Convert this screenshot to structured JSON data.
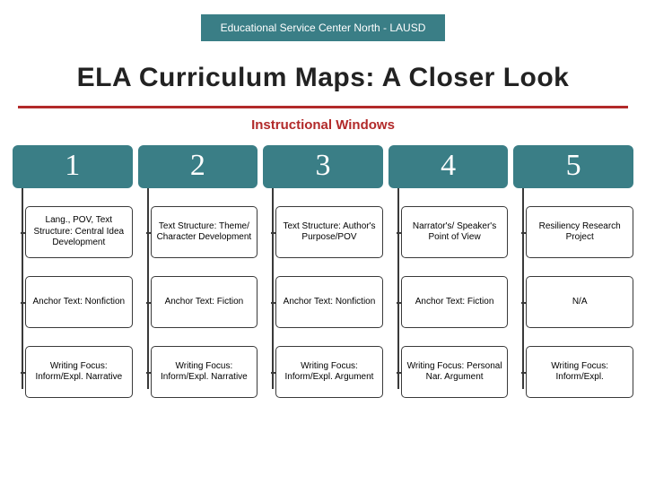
{
  "colors": {
    "teal": "#3a7e86",
    "accent": "#b22a2a",
    "text": "#222222",
    "box_border": "#3a3a3a",
    "background": "#ffffff"
  },
  "banner": "Educational Service Center North - LAUSD",
  "title": "ELA Curriculum Maps:  A Closer Look",
  "subtitle": "Instructional Windows",
  "columns": [
    {
      "num": "1",
      "rows": [
        "Lang., POV, Text Structure: Central Idea Development",
        "Anchor Text: Nonfiction",
        "Writing Focus: Inform/Expl. Narrative"
      ]
    },
    {
      "num": "2",
      "rows": [
        "Text Structure: Theme/ Character Development",
        "Anchor Text: Fiction",
        "Writing Focus: Inform/Expl. Narrative"
      ]
    },
    {
      "num": "3",
      "rows": [
        "Text Structure: Author's Purpose/POV",
        "Anchor Text: Nonfiction",
        "Writing Focus: Inform/Expl. Argument"
      ]
    },
    {
      "num": "4",
      "rows": [
        "Narrator's/ Speaker's Point of View",
        "Anchor Text: Fiction",
        "Writing Focus: Personal Nar. Argument"
      ]
    },
    {
      "num": "5",
      "rows": [
        "Resiliency Research Project",
        "N/A",
        "Writing Focus: Inform/Expl."
      ]
    }
  ]
}
